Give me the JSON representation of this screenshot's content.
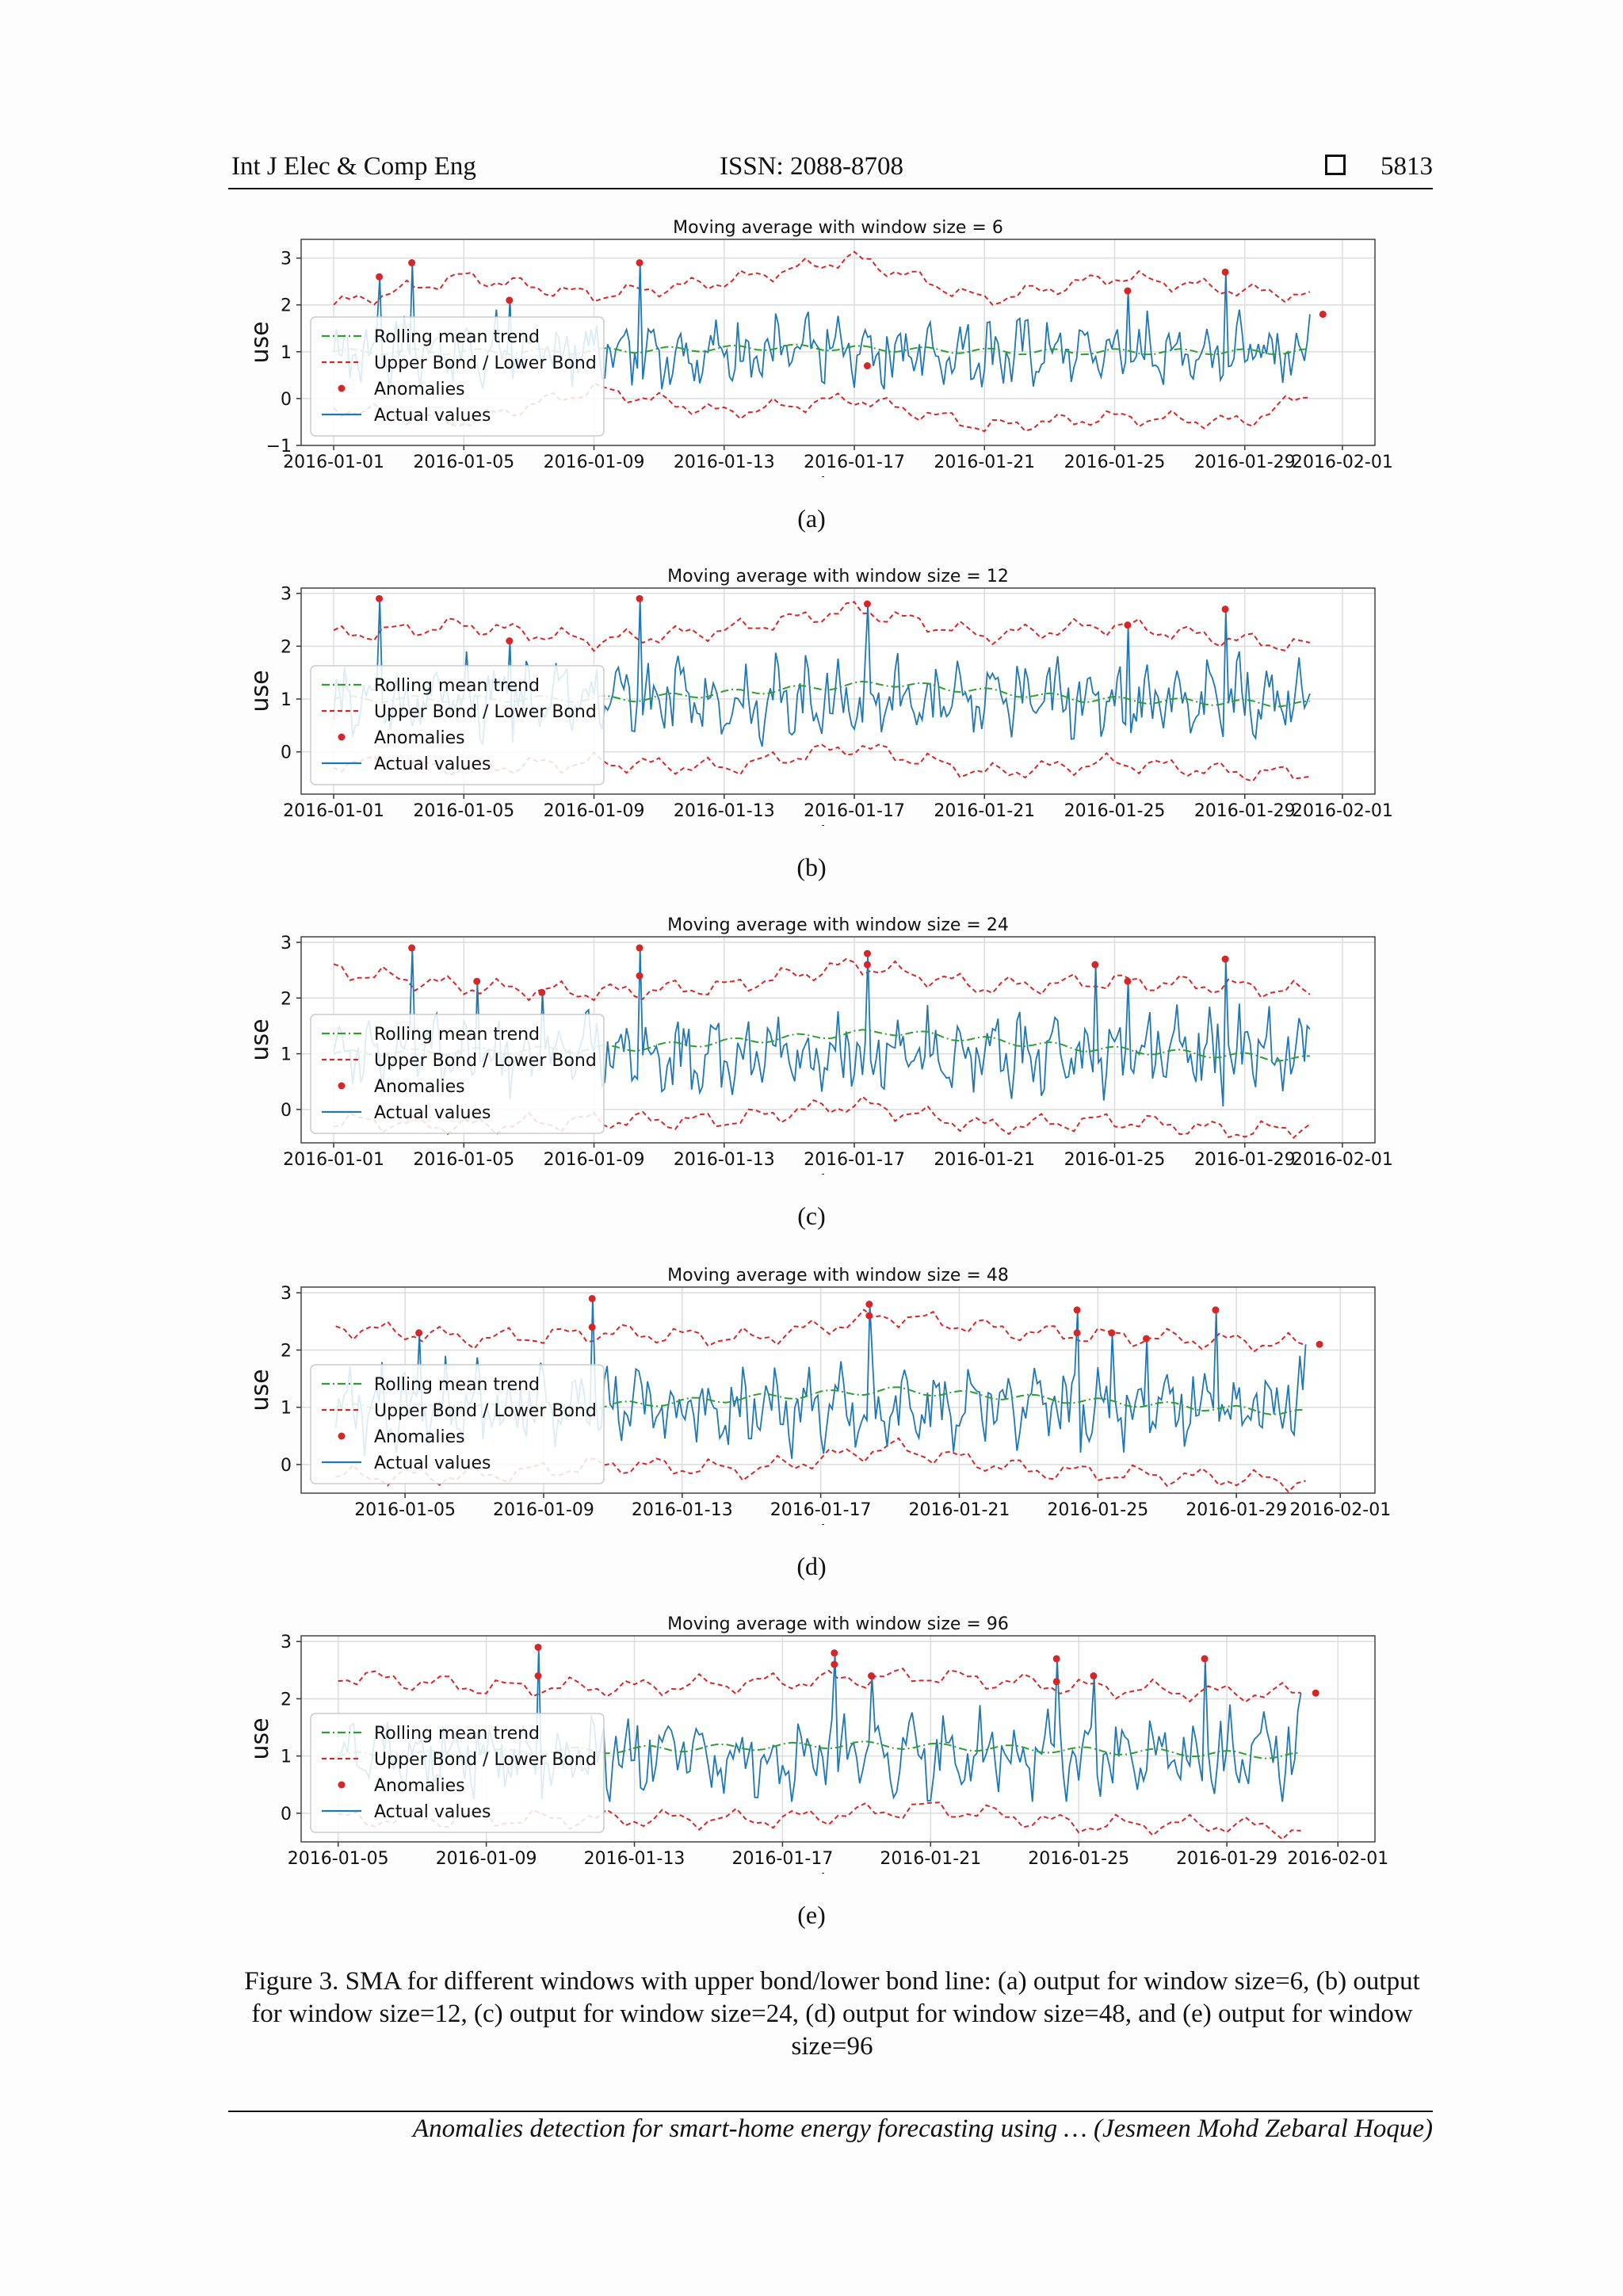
{
  "header": {
    "journal": "Int J Elec & Comp Eng",
    "issn": "ISSN: 2088-8708",
    "page_number": "5813"
  },
  "legend": {
    "rolling": "Rolling mean trend",
    "bounds": "Upper Bond / Lower Bond",
    "anomalies": "Anomalies",
    "actual": "Actual values"
  },
  "colors": {
    "actual": "#1f77b4",
    "rolling": "#2ca02c",
    "bounds": "#d62728",
    "anomalies": "#d62728"
  },
  "chart_data": [
    {
      "type": "line",
      "title": "Moving average with window size = 6",
      "subfigure": "(a)",
      "xlabel": "date",
      "ylabel": "use",
      "x_range": [
        "2015-12-31",
        "2016-02-02"
      ],
      "xticks": [
        "2016-01-01",
        "2016-01-05",
        "2016-01-09",
        "2016-01-13",
        "2016-01-17",
        "2016-01-21",
        "2016-01-25",
        "2016-01-29",
        "2016-02-01"
      ],
      "ylim": [
        -1,
        3.4
      ],
      "yticks": [
        -1,
        0,
        1,
        2,
        3
      ],
      "grid": true,
      "legend_position": "left",
      "series": [
        {
          "name": "Rolling mean trend",
          "style": "dash-dot",
          "x": [
            "2016-01-01",
            "2016-01-08",
            "2016-01-15",
            "2016-01-22",
            "2016-01-31"
          ],
          "y": [
            1.0,
            1.0,
            1.1,
            1.0,
            1.0
          ]
        },
        {
          "name": "Upper Bond / Lower Bond",
          "style": "dashed",
          "x": [
            "2016-01-01",
            "2016-01-05",
            "2016-01-09",
            "2016-01-13",
            "2016-01-17",
            "2016-01-21",
            "2016-01-25",
            "2016-01-29",
            "2016-01-31"
          ],
          "y_upper": [
            2.0,
            2.6,
            2.2,
            2.5,
            3.0,
            2.1,
            2.6,
            2.3,
            2.2
          ],
          "y_lower": [
            -0.2,
            -0.5,
            0.2,
            -0.3,
            0.0,
            -0.6,
            -0.4,
            -0.5,
            0.1
          ]
        },
        {
          "name": "Actual values",
          "style": "solid",
          "x": [
            "2016-01-01",
            "2016-01-31"
          ],
          "y_mean": [
            1.0,
            1.0
          ],
          "y_min": [
            0.2,
            0.2
          ],
          "y_max": [
            2.9,
            2.9
          ]
        }
      ],
      "anomalies": [
        {
          "x": "2016-01-02",
          "y": 2.6
        },
        {
          "x": "2016-01-03",
          "y": 2.9
        },
        {
          "x": "2016-01-06",
          "y": 2.1
        },
        {
          "x": "2016-01-10",
          "y": 2.9
        },
        {
          "x": "2016-01-17",
          "y": 0.7
        },
        {
          "x": "2016-01-25",
          "y": 2.3
        },
        {
          "x": "2016-01-28",
          "y": 2.7
        },
        {
          "x": "2016-01-31",
          "y": 1.8
        }
      ]
    },
    {
      "type": "line",
      "title": "Moving average with window size = 12",
      "subfigure": "(b)",
      "xlabel": "date",
      "ylabel": "use",
      "x_range": [
        "2015-12-31",
        "2016-02-02"
      ],
      "xticks": [
        "2016-01-01",
        "2016-01-05",
        "2016-01-09",
        "2016-01-13",
        "2016-01-17",
        "2016-01-21",
        "2016-01-25",
        "2016-01-29",
        "2016-02-01"
      ],
      "ylim": [
        -0.8,
        3.1
      ],
      "yticks": [
        0,
        1,
        2,
        3
      ],
      "grid": true,
      "legend_position": "left",
      "series": [
        {
          "name": "Rolling mean trend",
          "style": "dash-dot",
          "x": [
            "2016-01-01",
            "2016-01-10",
            "2016-01-18",
            "2016-01-24",
            "2016-01-31"
          ],
          "y": [
            1.0,
            1.0,
            1.3,
            1.0,
            0.9
          ]
        },
        {
          "name": "Upper Bond / Lower Bond",
          "style": "dashed",
          "x": [
            "2016-01-01",
            "2016-01-05",
            "2016-01-09",
            "2016-01-13",
            "2016-01-17",
            "2016-01-21",
            "2016-01-25",
            "2016-01-29",
            "2016-01-31"
          ],
          "y_upper": [
            2.2,
            2.4,
            2.1,
            2.3,
            2.7,
            2.2,
            2.4,
            2.1,
            2.0
          ],
          "y_lower": [
            -0.2,
            -0.3,
            -0.2,
            -0.3,
            0.1,
            -0.4,
            -0.2,
            -0.4,
            -0.4
          ]
        },
        {
          "name": "Actual values",
          "style": "solid",
          "x": [
            "2016-01-01",
            "2016-01-31"
          ],
          "y_mean": [
            1.0,
            1.0
          ],
          "y_min": [
            0.1,
            0.1
          ],
          "y_max": [
            2.9,
            2.9
          ]
        }
      ],
      "anomalies": [
        {
          "x": "2016-01-02",
          "y": 2.9
        },
        {
          "x": "2016-01-06",
          "y": 2.1
        },
        {
          "x": "2016-01-10",
          "y": 2.9
        },
        {
          "x": "2016-01-17",
          "y": 2.8
        },
        {
          "x": "2016-01-25",
          "y": 2.4
        },
        {
          "x": "2016-01-28",
          "y": 2.7
        }
      ]
    },
    {
      "type": "line",
      "title": "Moving average with window size = 24",
      "subfigure": "(c)",
      "xlabel": "date",
      "ylabel": "use",
      "x_range": [
        "2015-12-31",
        "2016-02-02"
      ],
      "xticks": [
        "2016-01-01",
        "2016-01-05",
        "2016-01-09",
        "2016-01-13",
        "2016-01-17",
        "2016-01-21",
        "2016-01-25",
        "2016-01-29",
        "2016-02-01"
      ],
      "ylim": [
        -0.6,
        3.1
      ],
      "yticks": [
        0,
        1,
        2,
        3
      ],
      "grid": true,
      "legend_position": "left",
      "series": [
        {
          "name": "Rolling mean trend",
          "style": "dash-dot",
          "x": [
            "2016-01-01",
            "2016-01-10",
            "2016-01-18",
            "2016-01-24",
            "2016-01-31"
          ],
          "y": [
            1.0,
            1.1,
            1.4,
            1.1,
            0.9
          ]
        },
        {
          "name": "Upper Bond / Lower Bond",
          "style": "dashed",
          "x": [
            "2016-01-01",
            "2016-01-05",
            "2016-01-09",
            "2016-01-13",
            "2016-01-17",
            "2016-01-21",
            "2016-01-25",
            "2016-01-29",
            "2016-01-31"
          ],
          "y_upper": [
            2.5,
            2.2,
            2.1,
            2.2,
            2.6,
            2.2,
            2.3,
            2.2,
            2.1
          ],
          "y_lower": [
            -0.2,
            -0.3,
            -0.2,
            -0.2,
            0.1,
            -0.3,
            -0.2,
            -0.4,
            -0.3
          ]
        },
        {
          "name": "Actual values",
          "style": "solid",
          "x": [
            "2016-01-01",
            "2016-01-31"
          ],
          "y_mean": [
            1.0,
            1.0
          ],
          "y_min": [
            0.0,
            0.0
          ],
          "y_max": [
            2.9,
            2.9
          ]
        }
      ],
      "anomalies": [
        {
          "x": "2016-01-03",
          "y": 2.9
        },
        {
          "x": "2016-01-05",
          "y": 2.3
        },
        {
          "x": "2016-01-07",
          "y": 2.1
        },
        {
          "x": "2016-01-10",
          "y": 2.9
        },
        {
          "x": "2016-01-10",
          "y": 2.4
        },
        {
          "x": "2016-01-17",
          "y": 2.8
        },
        {
          "x": "2016-01-17",
          "y": 2.6
        },
        {
          "x": "2016-01-24",
          "y": 2.6
        },
        {
          "x": "2016-01-25",
          "y": 2.3
        },
        {
          "x": "2016-01-28",
          "y": 2.7
        }
      ]
    },
    {
      "type": "line",
      "title": "Moving average with window size = 48",
      "subfigure": "(d)",
      "xlabel": "date",
      "ylabel": "use",
      "x_range": [
        "2016-01-02",
        "2016-02-02"
      ],
      "xticks": [
        "2016-01-05",
        "2016-01-09",
        "2016-01-13",
        "2016-01-17",
        "2016-01-21",
        "2016-01-25",
        "2016-01-29",
        "2016-02-01"
      ],
      "ylim": [
        -0.5,
        3.1
      ],
      "yticks": [
        0,
        1,
        2,
        3
      ],
      "grid": true,
      "legend_position": "left",
      "series": [
        {
          "name": "Rolling mean trend",
          "style": "dash-dot",
          "x": [
            "2016-01-03",
            "2016-01-10",
            "2016-01-19",
            "2016-01-25",
            "2016-01-31"
          ],
          "y": [
            1.0,
            1.0,
            1.3,
            1.1,
            0.9
          ]
        },
        {
          "name": "Upper Bond / Lower Bond",
          "style": "dashed",
          "x": [
            "2016-01-03",
            "2016-01-07",
            "2016-01-11",
            "2016-01-15",
            "2016-01-19",
            "2016-01-23",
            "2016-01-27",
            "2016-01-31"
          ],
          "y_upper": [
            2.4,
            2.2,
            2.3,
            2.2,
            2.6,
            2.3,
            2.2,
            2.1
          ],
          "y_lower": [
            -0.2,
            -0.2,
            0.0,
            -0.1,
            0.3,
            -0.1,
            -0.2,
            -0.3
          ]
        },
        {
          "name": "Actual values",
          "style": "solid",
          "x": [
            "2016-01-03",
            "2016-01-31"
          ],
          "y_mean": [
            1.0,
            1.0
          ],
          "y_min": [
            0.1,
            0.1
          ],
          "y_max": [
            2.9,
            2.9
          ]
        }
      ],
      "anomalies": [
        {
          "x": "2016-01-05",
          "y": 2.3
        },
        {
          "x": "2016-01-10",
          "y": 2.9
        },
        {
          "x": "2016-01-10",
          "y": 2.4
        },
        {
          "x": "2016-01-18",
          "y": 2.8
        },
        {
          "x": "2016-01-18",
          "y": 2.6
        },
        {
          "x": "2016-01-24",
          "y": 2.7
        },
        {
          "x": "2016-01-24",
          "y": 2.3
        },
        {
          "x": "2016-01-25",
          "y": 2.3
        },
        {
          "x": "2016-01-26",
          "y": 2.2
        },
        {
          "x": "2016-01-28",
          "y": 2.7
        },
        {
          "x": "2016-01-31",
          "y": 2.1
        }
      ]
    },
    {
      "type": "line",
      "title": "Moving average with window size = 96",
      "subfigure": "(e)",
      "xlabel": "date",
      "ylabel": "use",
      "x_range": [
        "2016-01-04",
        "2016-02-02"
      ],
      "xticks": [
        "2016-01-05",
        "2016-01-09",
        "2016-01-13",
        "2016-01-17",
        "2016-01-21",
        "2016-01-25",
        "2016-01-29",
        "2016-02-01"
      ],
      "ylim": [
        -0.5,
        3.1
      ],
      "yticks": [
        0,
        1,
        2,
        3
      ],
      "grid": true,
      "legend_position": "left",
      "series": [
        {
          "name": "Rolling mean trend",
          "style": "dash-dot",
          "x": [
            "2016-01-05",
            "2016-01-12",
            "2016-01-19",
            "2016-01-25",
            "2016-01-31"
          ],
          "y": [
            1.0,
            1.1,
            1.2,
            1.1,
            1.0
          ]
        },
        {
          "name": "Upper Bond / Lower Bond",
          "style": "dashed",
          "x": [
            "2016-01-05",
            "2016-01-09",
            "2016-01-13",
            "2016-01-17",
            "2016-01-21",
            "2016-01-25",
            "2016-01-29",
            "2016-01-31"
          ],
          "y_upper": [
            2.4,
            2.2,
            2.2,
            2.3,
            2.4,
            2.2,
            2.1,
            2.1
          ],
          "y_lower": [
            -0.1,
            -0.1,
            -0.1,
            -0.1,
            0.1,
            -0.2,
            -0.2,
            -0.3
          ]
        },
        {
          "name": "Actual values",
          "style": "solid",
          "x": [
            "2016-01-05",
            "2016-01-31"
          ],
          "y_mean": [
            1.0,
            1.0
          ],
          "y_min": [
            0.2,
            0.2
          ],
          "y_max": [
            2.9,
            2.9
          ]
        }
      ],
      "anomalies": [
        {
          "x": "2016-01-10",
          "y": 2.9
        },
        {
          "x": "2016-01-10",
          "y": 2.4
        },
        {
          "x": "2016-01-18",
          "y": 2.8
        },
        {
          "x": "2016-01-18",
          "y": 2.6
        },
        {
          "x": "2016-01-19",
          "y": 2.4
        },
        {
          "x": "2016-01-24",
          "y": 2.3
        },
        {
          "x": "2016-01-24",
          "y": 2.7
        },
        {
          "x": "2016-01-25",
          "y": 2.4
        },
        {
          "x": "2016-01-28",
          "y": 2.7
        },
        {
          "x": "2016-01-31",
          "y": 2.1
        }
      ]
    }
  ],
  "caption": "Figure 3. SMA for different windows with upper bond/lower bond line: (a) output for window size=6, (b) output for window size=12, (c) output for window size=24, (d) output for window size=48, and (e) output for window size=96",
  "footer": "Anomalies detection for smart-home energy forecasting using … (Jesmeen Mohd Zebaral Hoque)"
}
